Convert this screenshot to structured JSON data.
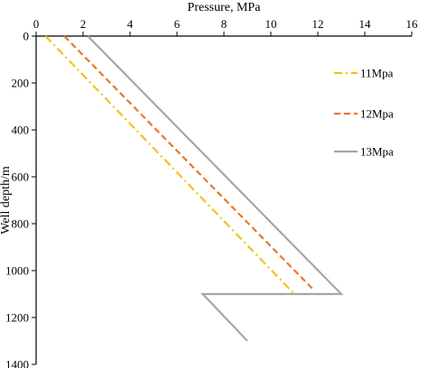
{
  "chart_data": {
    "type": "line",
    "xlabel": "Pressure, MPa",
    "ylabel": "Well depth/m",
    "xlim": [
      0,
      16
    ],
    "ylim": [
      1400,
      0
    ],
    "x_axis_position": "top",
    "y_inverted": true,
    "xticks": [
      0,
      2,
      4,
      6,
      8,
      10,
      12,
      14,
      16
    ],
    "yticks": [
      0,
      200,
      400,
      600,
      800,
      1000,
      1200,
      1400
    ],
    "grid": false,
    "legend_position": "right",
    "series": [
      {
        "name": "11Mpa",
        "color": "#f2c21b",
        "dash": "dash-dot",
        "points": [
          [
            0.4,
            0
          ],
          [
            11.0,
            1100
          ]
        ]
      },
      {
        "name": "12Mpa",
        "color": "#e9772e",
        "dash": "dash",
        "points": [
          [
            1.2,
            0
          ],
          [
            11.8,
            1080
          ]
        ]
      },
      {
        "name": "13Mpa",
        "color": "#a6a6a6",
        "dash": "solid",
        "points": [
          [
            2.2,
            0
          ],
          [
            13.0,
            1100
          ],
          [
            7.1,
            1100
          ],
          [
            9.0,
            1300
          ]
        ]
      }
    ]
  }
}
